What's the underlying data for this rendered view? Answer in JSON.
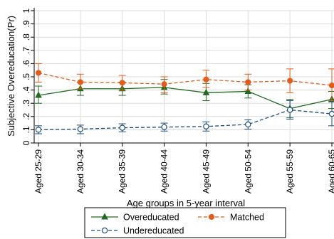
{
  "chart_data": {
    "type": "line",
    "ylabel": "Subjective Overeducation(Pr)",
    "xlabel": "Age groups in 5-year interval",
    "categories": [
      "Aged 25-29",
      "Aged 30-34",
      "Aged 35-39",
      "Aged 40-44",
      "Aged 45-49",
      "Aged 50-54",
      "Aged 55-59",
      "Aged 60-65"
    ],
    "ylim": [
      0,
      1
    ],
    "yticks": [
      0,
      0.1,
      0.2,
      0.3,
      0.4,
      0.5,
      0.6,
      0.7,
      0.8,
      0.9,
      1
    ],
    "ytick_labels": [
      "0",
      ".1",
      ".2",
      ".3",
      ".4",
      ".5",
      ".6",
      ".7",
      ".8",
      ".9",
      "1"
    ],
    "grid": true,
    "legend_position": "bottom",
    "series": [
      {
        "name": "Overeducated",
        "color": "#1f6b1f",
        "marker": "triangle",
        "line": "solid",
        "values": [
          0.36,
          0.41,
          0.41,
          0.42,
          0.38,
          0.39,
          0.26,
          0.33
        ],
        "ci_low": [
          0.3,
          0.36,
          0.36,
          0.37,
          0.32,
          0.34,
          0.19,
          0.26
        ],
        "ci_high": [
          0.43,
          0.46,
          0.46,
          0.48,
          0.45,
          0.44,
          0.33,
          0.39
        ]
      },
      {
        "name": "Matched",
        "color": "#e25c1c",
        "marker": "circle-filled",
        "line": "dash",
        "values": [
          0.53,
          0.46,
          0.455,
          0.445,
          0.48,
          0.46,
          0.47,
          0.435
        ],
        "ci_low": [
          0.46,
          0.41,
          0.4,
          0.38,
          0.42,
          0.4,
          0.38,
          0.32
        ],
        "ci_high": [
          0.6,
          0.52,
          0.51,
          0.5,
          0.55,
          0.52,
          0.56,
          0.56
        ]
      },
      {
        "name": "Undereducated",
        "color": "#1d4e79",
        "marker": "circle-hollow",
        "line": "dash",
        "values": [
          0.1,
          0.105,
          0.115,
          0.12,
          0.125,
          0.14,
          0.25,
          0.22
        ],
        "ci_low": [
          0.07,
          0.07,
          0.085,
          0.09,
          0.09,
          0.105,
          0.18,
          0.13
        ],
        "ci_high": [
          0.13,
          0.135,
          0.145,
          0.15,
          0.16,
          0.175,
          0.32,
          0.31
        ]
      }
    ]
  }
}
